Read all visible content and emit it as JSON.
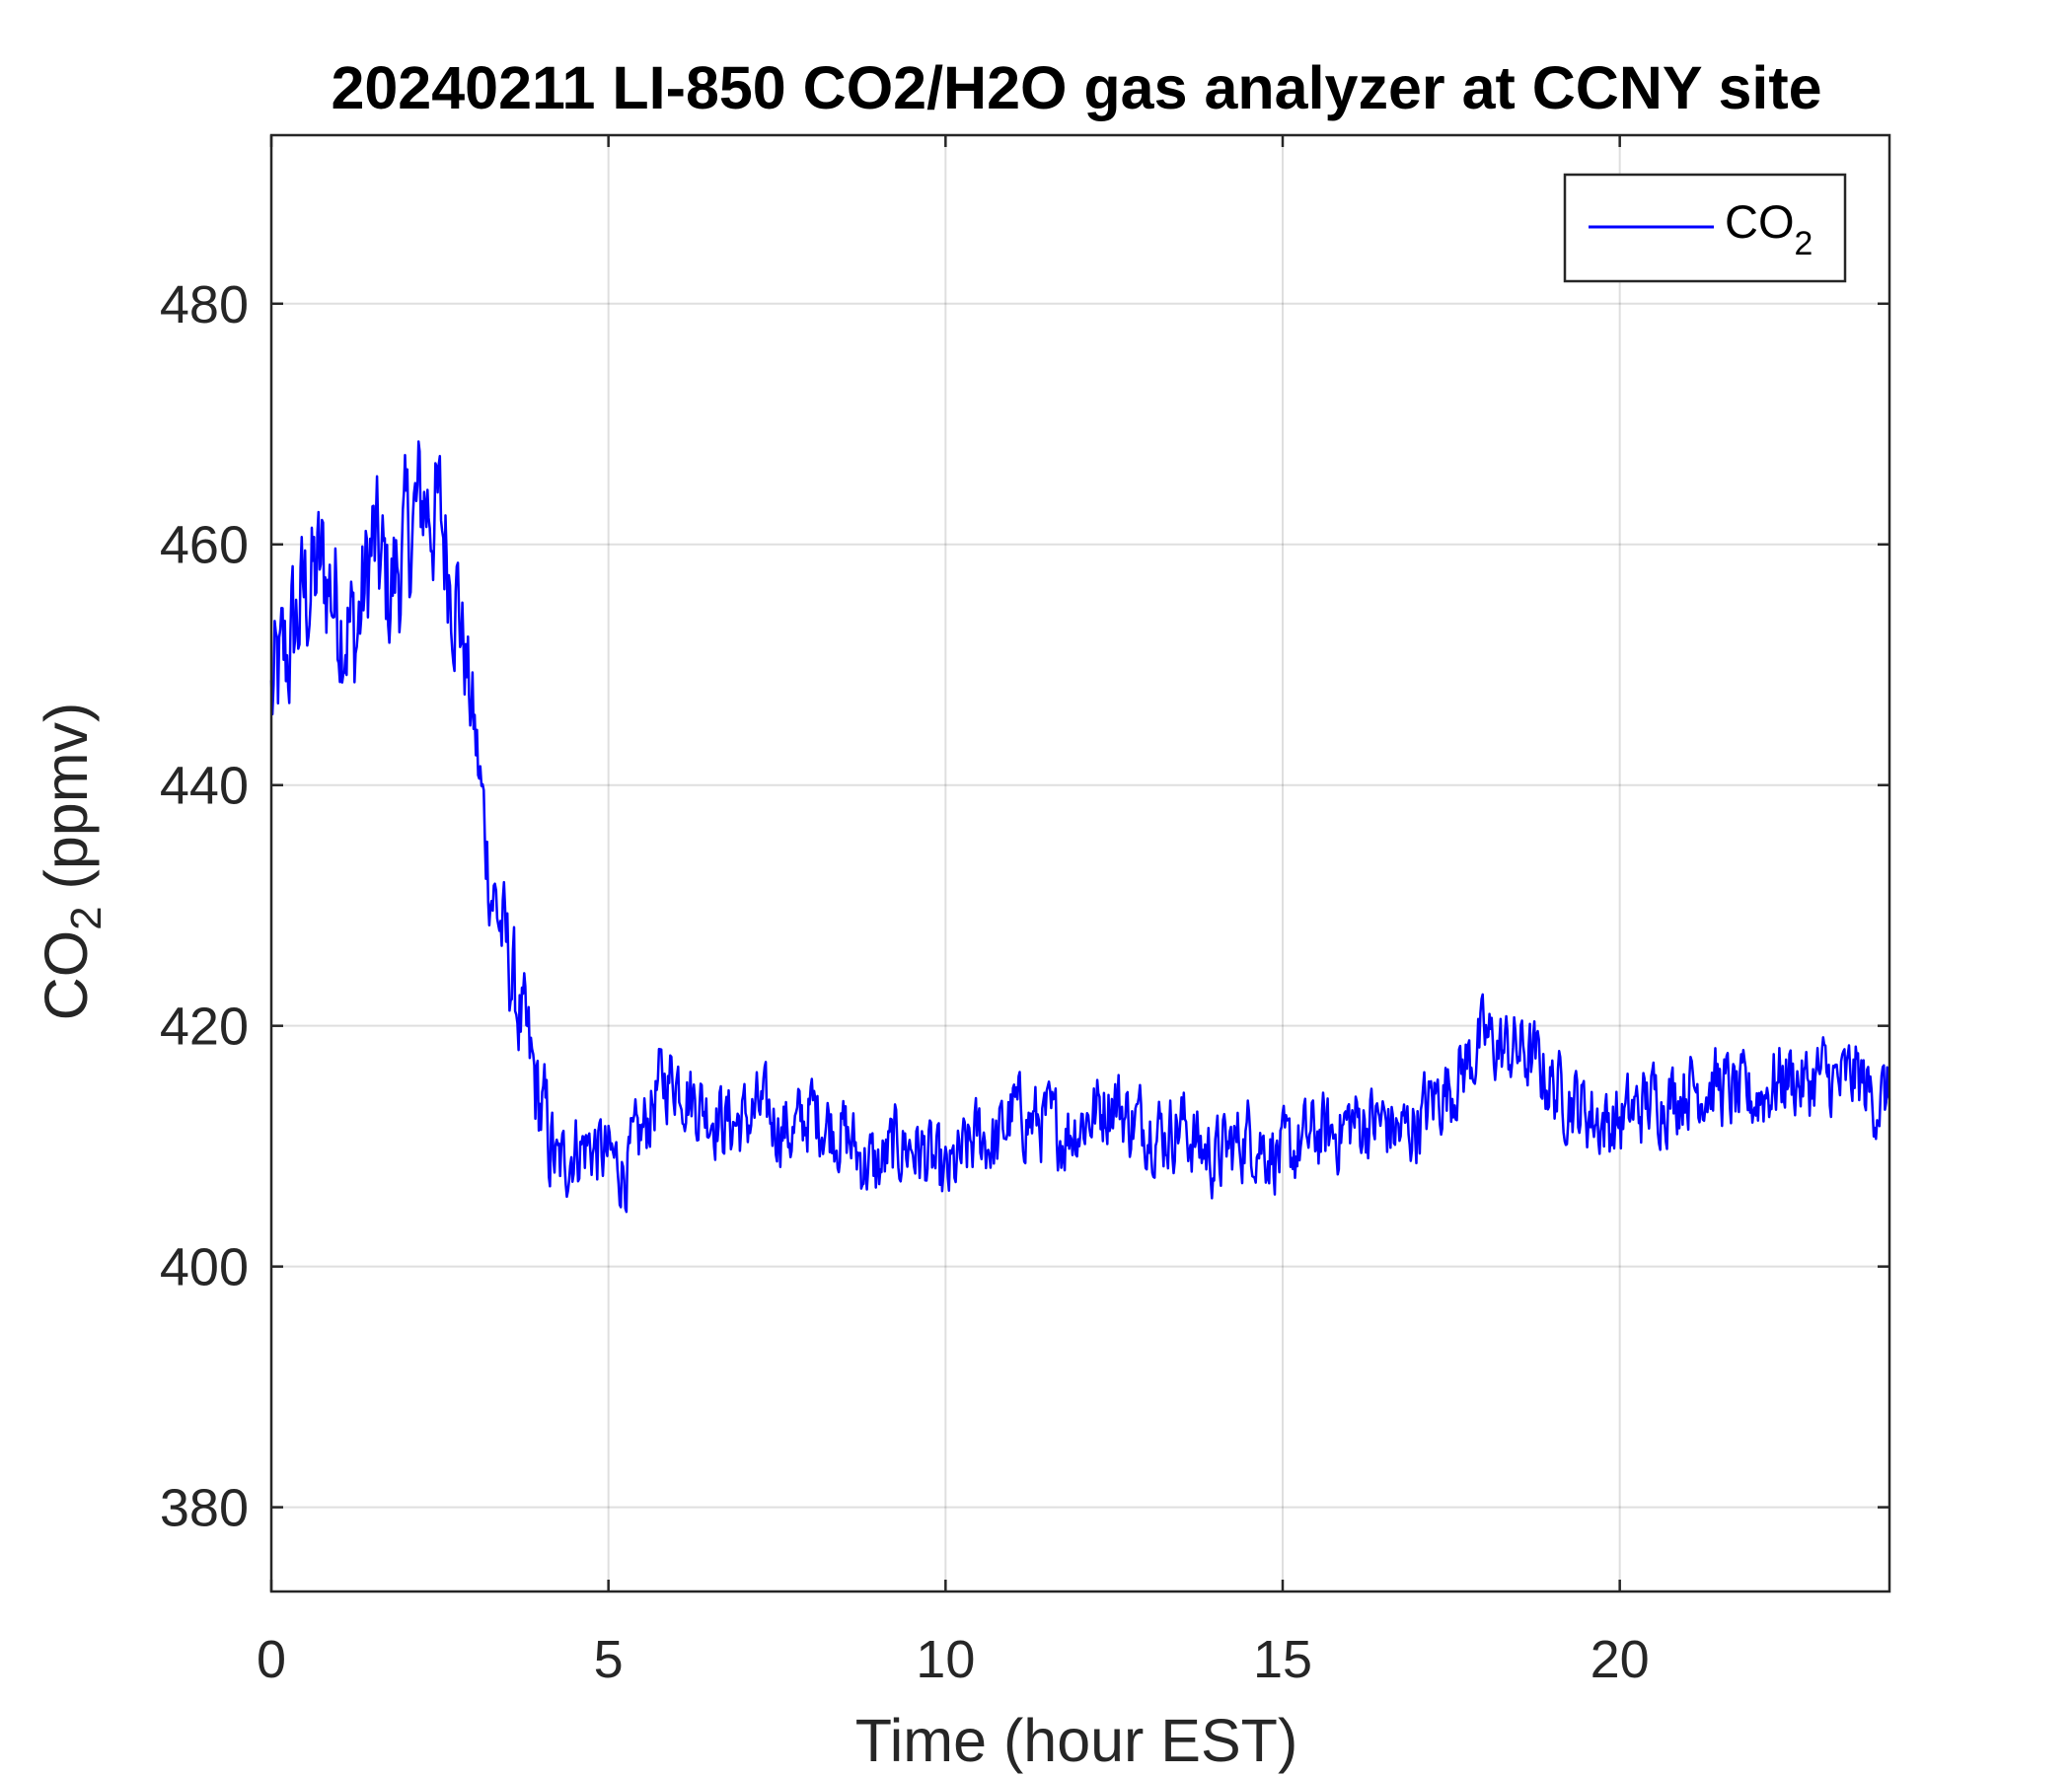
{
  "chart_data": {
    "type": "line",
    "title": "20240211 LI-850 CO2/H2O gas analyzer at CCNY site",
    "xlabel": "Time (hour EST)",
    "ylabel": {
      "main": "CO",
      "sub": "2",
      "suffix": " (ppmv)"
    },
    "xlim": [
      0,
      24
    ],
    "ylim": [
      373,
      494
    ],
    "xticks": [
      0,
      5,
      10,
      15,
      20
    ],
    "yticks": [
      380,
      400,
      420,
      440,
      460,
      480
    ],
    "grid": true,
    "legend": {
      "position": "top-right"
    },
    "series": [
      {
        "legend": {
          "main": "CO",
          "sub": "2"
        },
        "color": "#0000FF",
        "x": [
          0,
          0.25,
          0.5,
          0.75,
          1,
          1.25,
          1.5,
          1.75,
          2,
          2.25,
          2.5,
          2.75,
          3,
          3.25,
          3.5,
          3.75,
          4,
          4.25,
          4.5,
          4.75,
          5,
          5.25,
          5.5,
          5.75,
          6,
          6.25,
          6.5,
          6.75,
          7,
          7.25,
          7.5,
          7.75,
          8,
          8.25,
          8.5,
          8.75,
          9,
          9.25,
          9.5,
          9.75,
          10,
          10.25,
          10.5,
          10.75,
          11,
          11.25,
          11.5,
          11.75,
          12,
          12.25,
          12.5,
          12.75,
          13,
          13.25,
          13.5,
          13.75,
          14,
          14.25,
          14.5,
          14.75,
          15,
          15.25,
          15.5,
          15.75,
          16,
          16.25,
          16.5,
          16.75,
          17,
          17.25,
          17.5,
          17.75,
          18,
          18.25,
          18.5,
          18.75,
          19,
          19.25,
          19.5,
          19.75,
          20,
          20.25,
          20.5,
          20.75,
          21,
          21.25,
          21.5,
          21.75,
          22,
          22.25,
          22.5,
          22.75,
          23,
          23.25,
          23.5,
          23.75,
          24
        ],
        "y": [
          447,
          451,
          456,
          458,
          455,
          452,
          460,
          456,
          460,
          464,
          462,
          456,
          445,
          432,
          426,
          419,
          413,
          408,
          410,
          410,
          409,
          408,
          411,
          415,
          416,
          414,
          413,
          412,
          412,
          413,
          412,
          411,
          413,
          412,
          411,
          409,
          408,
          410,
          410,
          409,
          407,
          409,
          411,
          410,
          413,
          412,
          412,
          411,
          412,
          413,
          414,
          412,
          412,
          411,
          412,
          410,
          409,
          410,
          411,
          410,
          409,
          410,
          411,
          411,
          412,
          412,
          412,
          411,
          412,
          414,
          415,
          417,
          419,
          418,
          418,
          417,
          415,
          414,
          413,
          412,
          412,
          413,
          414,
          414,
          415,
          415,
          415,
          414,
          414,
          415,
          416,
          415,
          416,
          415,
          416,
          414,
          414
        ]
      }
    ]
  }
}
